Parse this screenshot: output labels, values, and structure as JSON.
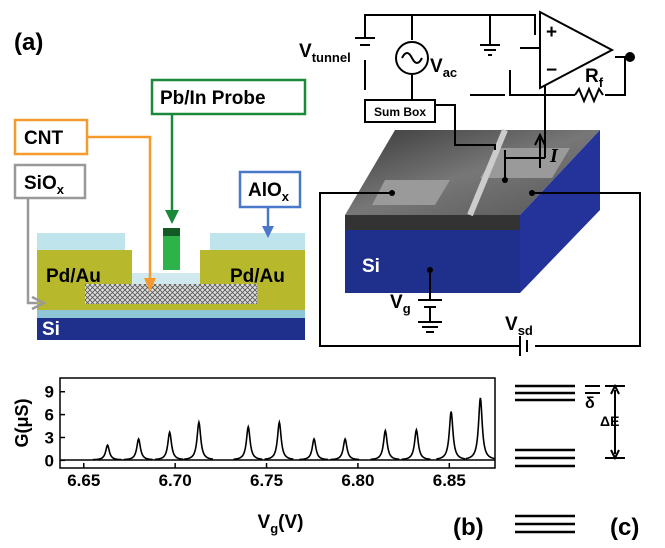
{
  "panel_a": {
    "label": "(a)",
    "probe": "Pb/In Probe",
    "cnt": "CNT",
    "siox": {
      "main": "SiO",
      "sub": "x"
    },
    "alox": {
      "main": "AlO",
      "sub": "x"
    },
    "contact_left": "Pd/Au",
    "contact_right": "Pd/Au",
    "substrate": "Si"
  },
  "circuit": {
    "vtunnel": {
      "main": "V",
      "sub": "tunnel"
    },
    "vac": {
      "main": "V",
      "sub": "ac"
    },
    "sum_box": "Sum Box",
    "rf": {
      "main": "R",
      "sub": "f"
    },
    "plus": "+",
    "minus": "−",
    "current": "I",
    "substrate": "Si",
    "vg": {
      "main": "V",
      "sub": "g"
    },
    "vsd": {
      "main": "V",
      "sub": "sd"
    }
  },
  "chart_data": {
    "type": "peaks",
    "panel_label": "(b)",
    "ylabel": "G(μS)",
    "xlabel": {
      "main": "V",
      "sub": "g",
      "rest": "(V)"
    },
    "x": [
      6.663,
      6.68,
      6.697,
      6.713,
      6.74,
      6.757,
      6.776,
      6.793,
      6.815,
      6.832,
      6.851,
      6.867
    ],
    "values": [
      2.0,
      2.8,
      3.7,
      5.0,
      4.4,
      5.0,
      2.8,
      2.8,
      3.9,
      4.0,
      6.4,
      8.2
    ],
    "color": "#000000",
    "xlim": [
      6.637,
      6.875
    ],
    "ylim": [
      -1,
      10.8
    ],
    "xticks": [
      6.65,
      {
        "value": 6.7,
        "label": "6.70"
      },
      6.75,
      {
        "value": 6.8,
        "label": "6.80"
      },
      6.85
    ],
    "yticks": [
      0,
      3,
      6,
      9
    ]
  },
  "panel_c": {
    "label": "(c)",
    "delta": "δ",
    "delta_e": "ΔE"
  }
}
